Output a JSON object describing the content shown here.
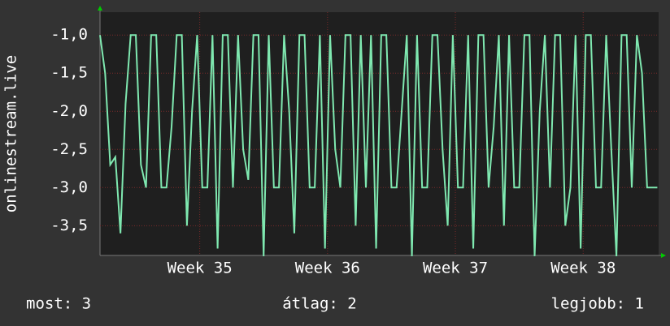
{
  "chart_data": {
    "type": "line",
    "ylabel": "onlinestream.live",
    "x": [
      34.22,
      34.26,
      34.3,
      34.34,
      34.38,
      34.42,
      34.46,
      34.5,
      34.54,
      34.58,
      34.62,
      34.66,
      34.7,
      34.74,
      34.78,
      34.82,
      34.86,
      34.9,
      34.94,
      34.98,
      35.02,
      35.06,
      35.1,
      35.14,
      35.18,
      35.22,
      35.26,
      35.3,
      35.34,
      35.38,
      35.42,
      35.46,
      35.5,
      35.54,
      35.58,
      35.62,
      35.66,
      35.7,
      35.74,
      35.78,
      35.82,
      35.86,
      35.9,
      35.94,
      35.98,
      36.02,
      36.06,
      36.1,
      36.14,
      36.18,
      36.22,
      36.26,
      36.3,
      36.34,
      36.38,
      36.42,
      36.46,
      36.5,
      36.54,
      36.58,
      36.62,
      36.66,
      36.7,
      36.74,
      36.78,
      36.82,
      36.86,
      36.9,
      36.94,
      36.98,
      37.02,
      37.06,
      37.1,
      37.14,
      37.18,
      37.22,
      37.26,
      37.3,
      37.34,
      37.38,
      37.42,
      37.46,
      37.5,
      37.54,
      37.58,
      37.62,
      37.66,
      37.7,
      37.74,
      37.78,
      37.82,
      37.86,
      37.9,
      37.94,
      37.98,
      38.02,
      38.06,
      38.1,
      38.14,
      38.18,
      38.22,
      38.26,
      38.3,
      38.34,
      38.38,
      38.42,
      38.46,
      38.5,
      38.54,
      38.58
    ],
    "series": [
      {
        "color": "#7fe8b0",
        "values": [
          -1,
          -1.5,
          -2.7,
          -2.6,
          -3.6,
          -1.9,
          -1,
          -1,
          -2.7,
          -3,
          -1,
          -1,
          -3,
          -3,
          -2.2,
          -1,
          -1,
          -3.5,
          -2,
          -1,
          -3,
          -3,
          -1,
          -3.8,
          -1,
          -1,
          -3,
          -1,
          -2.5,
          -2.9,
          -1,
          -1,
          -3.9,
          -1,
          -3,
          -3,
          -1,
          -2,
          -3.6,
          -1,
          -1,
          -3,
          -3,
          -1,
          -3.8,
          -1,
          -2.5,
          -3,
          -1,
          -1,
          -3.5,
          -1,
          -3,
          -1,
          -3.8,
          -1,
          -1,
          -3,
          -3,
          -2,
          -1,
          -3.9,
          -1,
          -3,
          -3,
          -1,
          -1,
          -2.5,
          -3.5,
          -1,
          -3,
          -3,
          -1,
          -3.8,
          -1,
          -1,
          -3,
          -2.2,
          -1,
          -3.5,
          -1,
          -3,
          -3,
          -1,
          -1,
          -3.9,
          -2,
          -1,
          -3,
          -1,
          -1,
          -3.5,
          -3,
          -1,
          -3.8,
          -1,
          -1,
          -3,
          -3,
          -1,
          -2.5,
          -3.9,
          -1,
          -1,
          -3,
          -1,
          -1.5,
          -3,
          -3,
          -3
        ]
      }
    ],
    "xlim": [
      34.22,
      38.59
    ],
    "xticks": [
      {
        "value": 35,
        "label": "Week 35"
      },
      {
        "value": 36,
        "label": "Week 36"
      },
      {
        "value": 37,
        "label": "Week 37"
      },
      {
        "value": 38,
        "label": "Week 38"
      }
    ],
    "ylim": [
      -3.89,
      -0.7
    ],
    "yticks": [
      {
        "value": -1,
        "label": "-1,0"
      },
      {
        "value": -1.5,
        "label": "-1,5"
      },
      {
        "value": -2,
        "label": "-2,0"
      },
      {
        "value": -2.5,
        "label": "-2,5"
      },
      {
        "value": -3,
        "label": "-3,0"
      },
      {
        "value": -3.5,
        "label": "-3,5"
      }
    ],
    "grid": true,
    "stats": [
      "most: 3",
      "átlag: 2",
      "legjobb: 1"
    ]
  }
}
